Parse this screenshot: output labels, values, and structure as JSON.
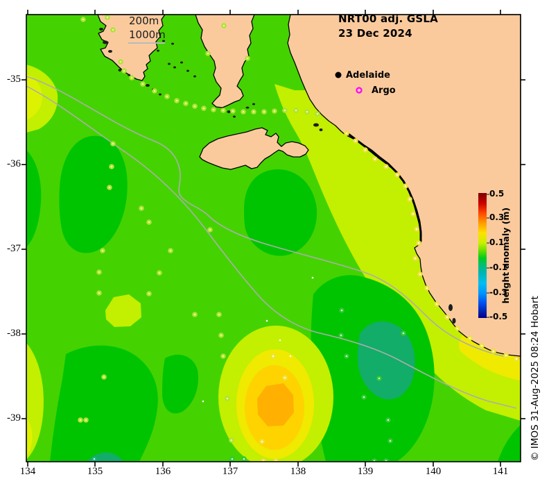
{
  "title": {
    "line1": "NRT00 adj. GSLA",
    "line2": "23 Dec 2024"
  },
  "depth_legend": {
    "label_200": "200m",
    "label_1000": "1000m"
  },
  "place_markers": {
    "adelaide": "Adelaide",
    "argo": "Argo"
  },
  "colorbar": {
    "label": "height anomaly (m)",
    "tick_labels": [
      "0.5",
      "0.3",
      "0.1",
      "-0.1",
      "-0.3",
      "-0.5"
    ]
  },
  "axes": {
    "x_tick_labels": [
      "134",
      "135",
      "136",
      "137",
      "138",
      "139",
      "140",
      "141"
    ],
    "y_tick_labels": [
      "-35",
      "-36",
      "-37",
      "-38",
      "-39"
    ]
  },
  "copyright": "© IMOS 31-Aug-2025 08:24 Hobart",
  "colors": {
    "land": "#FACA9D",
    "coastline": "#000000",
    "ocean_green": "#44D300",
    "dark_green": "#00C400",
    "teal": "#12AD68",
    "chartreuse": "#C3EF00",
    "yellow": "#EFEA00",
    "golden": "#FFD300",
    "orange": "#FFB000",
    "bathymetry_gray": "#ADADAD",
    "argo_magenta": "#FF00FF"
  },
  "dot_styles": {
    "ch": {
      "ring": "#AEE336",
      "center": "#EDF9A8"
    },
    "ye": {
      "ring": "#EDE23C",
      "center": "#FFFBD6"
    },
    "gr": {
      "ring": "#2FCB2F",
      "center": "#D8F7D8"
    },
    "te": {
      "ring": "#15B27C",
      "center": "#CFF5EA"
    }
  },
  "observation_dots": [
    [
      120,
      28,
      "ch"
    ],
    [
      155,
      25,
      "ch"
    ],
    [
      163,
      43,
      "ch"
    ],
    [
      174,
      89,
      "ch"
    ],
    [
      179,
      102,
      "ch"
    ],
    [
      190,
      112,
      "ch"
    ],
    [
      206,
      121,
      "ch"
    ],
    [
      223,
      131,
      "ch"
    ],
    [
      241,
      139,
      "ch"
    ],
    [
      255,
      145,
      "ch"
    ],
    [
      268,
      149,
      "ch"
    ],
    [
      281,
      153,
      "ch"
    ],
    [
      294,
      156,
      "ch"
    ],
    [
      308,
      158,
      "ch"
    ],
    [
      322,
      159,
      "ch"
    ],
    [
      336,
      160,
      "ch"
    ],
    [
      351,
      161,
      "ch"
    ],
    [
      366,
      161,
      "ch"
    ],
    [
      381,
      161,
      "ch"
    ],
    [
      396,
      160,
      "ch"
    ],
    [
      411,
      159,
      "ch"
    ],
    [
      427,
      159,
      "ch"
    ],
    [
      443,
      161,
      "ch"
    ],
    [
      458,
      164,
      "ch"
    ],
    [
      300,
      77,
      "ch"
    ],
    [
      323,
      37,
      "ch"
    ],
    [
      357,
      84,
      "ch"
    ],
    [
      163,
      207,
      "ch"
    ],
    [
      161,
      240,
      "ch"
    ],
    [
      158,
      270,
      "ch"
    ],
    [
      204,
      300,
      "ch"
    ],
    [
      215,
      320,
      "ch"
    ],
    [
      303,
      331,
      "ch"
    ],
    [
      148,
      361,
      "ch"
    ],
    [
      246,
      361,
      "ch"
    ],
    [
      143,
      392,
      "ch"
    ],
    [
      230,
      393,
      "ch"
    ],
    [
      143,
      422,
      "ch"
    ],
    [
      215,
      423,
      "ch"
    ],
    [
      281,
      453,
      "ch"
    ],
    [
      316,
      453,
      "ch"
    ],
    [
      319,
      483,
      "ch"
    ],
    [
      322,
      513,
      "ch"
    ],
    [
      150,
      543,
      "ch"
    ],
    [
      116,
      605,
      "ch"
    ],
    [
      124,
      605,
      "ch"
    ],
    [
      328,
      574,
      "ch"
    ],
    [
      334,
      634,
      "ch"
    ],
    [
      378,
      636,
      "ye"
    ],
    [
      411,
      544,
      "ye"
    ],
    [
      394,
      513,
      "ye"
    ],
    [
      380,
      664,
      "ye"
    ],
    [
      398,
      664,
      "ye"
    ],
    [
      500,
      192,
      "ye"
    ],
    [
      513,
      203,
      "ye"
    ],
    [
      527,
      216,
      "ye"
    ],
    [
      541,
      229,
      "ye"
    ],
    [
      557,
      240,
      "ye"
    ],
    [
      573,
      252,
      "ye"
    ],
    [
      585,
      268,
      "ye"
    ],
    [
      591,
      287,
      "ye"
    ],
    [
      596,
      308,
      "ye"
    ],
    [
      601,
      330,
      "ye"
    ],
    [
      604,
      350,
      "ye"
    ],
    [
      599,
      372,
      "ye"
    ],
    [
      606,
      395,
      "ye"
    ],
    [
      616,
      415,
      "ye"
    ],
    [
      630,
      438,
      "ye"
    ],
    [
      645,
      457,
      "ye"
    ],
    [
      660,
      473,
      "ye"
    ],
    [
      678,
      487,
      "ye"
    ],
    [
      695,
      498,
      "ye"
    ],
    [
      712,
      506,
      "ye"
    ],
    [
      730,
      512,
      "ye"
    ],
    [
      745,
      517,
      "ye"
    ],
    [
      492,
      483,
      "gr"
    ],
    [
      500,
      513,
      "gr"
    ],
    [
      547,
      545,
      "gr"
    ],
    [
      525,
      572,
      "gr"
    ],
    [
      560,
      605,
      "gr"
    ],
    [
      563,
      635,
      "gr"
    ],
    [
      582,
      480,
      "gr"
    ],
    [
      493,
      447,
      "gr"
    ],
    [
      335,
      661,
      "gr"
    ],
    [
      352,
      661,
      "gr"
    ],
    [
      540,
      664,
      "gr"
    ],
    [
      557,
      664,
      "gr"
    ],
    [
      136,
      661,
      "te"
    ],
    [
      451,
      400,
      "wh"
    ],
    [
      404,
      490,
      "wh"
    ],
    [
      293,
      578,
      "wh"
    ],
    [
      419,
      513,
      "wh"
    ],
    [
      385,
      462,
      "wh"
    ]
  ]
}
